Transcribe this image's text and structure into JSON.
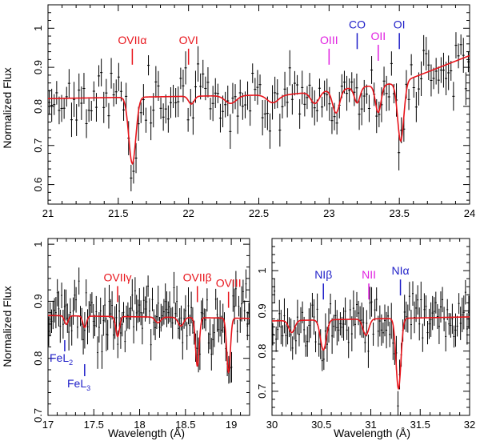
{
  "figure": {
    "ylabel": "Normalized Flux",
    "xlabel": "Wavelength (Å)"
  },
  "chart_data": [
    {
      "type": "line",
      "panel": "top",
      "xlim": [
        21,
        24
      ],
      "ylim": [
        0.55,
        1.06
      ],
      "xticks": [
        21,
        21.5,
        22,
        22.5,
        23,
        23.5,
        24
      ],
      "xtick_labels": [
        "21",
        "21.5",
        "22",
        "22.5",
        "23",
        "23.5",
        "24"
      ],
      "yticks": [
        0.6,
        0.7,
        0.8,
        0.9,
        1
      ],
      "ytick_labels": [
        "0.6",
        "0.7",
        "0.8",
        "0.9",
        "1"
      ],
      "ylabel": "Normalized Flux",
      "xlabel": "",
      "continuum": [
        [
          21.0,
          0.82
        ],
        [
          22.7,
          0.83
        ],
        [
          23.5,
          0.86
        ],
        [
          24.0,
          0.93
        ]
      ],
      "absorption_lines": [
        {
          "center": 21.6,
          "depth": 0.17,
          "width": 0.025
        },
        {
          "center": 22.02,
          "depth": 0.02,
          "width": 0.02
        },
        {
          "center": 22.3,
          "depth": 0.02,
          "width": 0.04
        },
        {
          "center": 22.6,
          "depth": 0.02,
          "width": 0.04
        },
        {
          "center": 22.9,
          "depth": 0.03,
          "width": 0.03
        },
        {
          "center": 23.05,
          "depth": 0.06,
          "width": 0.025
        },
        {
          "center": 23.2,
          "depth": 0.04,
          "width": 0.02
        },
        {
          "center": 23.35,
          "depth": 0.07,
          "width": 0.02
        },
        {
          "center": 23.51,
          "depth": 0.15,
          "width": 0.022
        }
      ],
      "data_points": {
        "x_start": 21.0,
        "x_end": 24.0,
        "n": 170,
        "seed": 11,
        "scatter": 0.035,
        "error": 0.035
      },
      "line_labels": [
        {
          "text": "OVIIα",
          "x": 21.6,
          "color": "#e8141b",
          "label_y": 0.96
        },
        {
          "text": "OVI",
          "x": 22.0,
          "color": "#e8141b",
          "label_y": 0.96
        },
        {
          "text": "OIII",
          "x": 23.0,
          "color": "#e020e0",
          "label_y": 0.96
        },
        {
          "text": "CO",
          "x": 23.2,
          "color": "#1e1ec8",
          "label_y": 1.0
        },
        {
          "text": "OII",
          "x": 23.35,
          "color": "#e020e0",
          "label_y": 0.97
        },
        {
          "text": "OI",
          "x": 23.5,
          "color": "#1e1ec8",
          "label_y": 1.0
        }
      ]
    },
    {
      "type": "line",
      "panel": "bottom-left",
      "xlim": [
        17,
        19.2
      ],
      "ylim": [
        0.7,
        1.01
      ],
      "xticks": [
        17,
        17.5,
        18,
        18.5,
        19
      ],
      "xtick_labels": [
        "17",
        "17.5",
        "18",
        "18.5",
        "19"
      ],
      "yticks": [
        0.7,
        0.8,
        0.9,
        1
      ],
      "ytick_labels": [
        "0.7",
        "0.8",
        "0.9",
        "1"
      ],
      "ylabel": "Normalized Flux",
      "xlabel": "Wavelength (Å)",
      "continuum": [
        [
          17.0,
          0.875
        ],
        [
          19.2,
          0.87
        ]
      ],
      "absorption_lines": [
        {
          "center": 17.2,
          "depth": 0.015,
          "width": 0.02
        },
        {
          "center": 17.4,
          "depth": 0.02,
          "width": 0.02
        },
        {
          "center": 17.76,
          "depth": 0.035,
          "width": 0.02
        },
        {
          "center": 18.2,
          "depth": 0.01,
          "width": 0.03
        },
        {
          "center": 18.45,
          "depth": 0.015,
          "width": 0.03
        },
        {
          "center": 18.63,
          "depth": 0.085,
          "width": 0.02
        },
        {
          "center": 18.97,
          "depth": 0.095,
          "width": 0.02
        }
      ],
      "data_points": {
        "x_start": 17.0,
        "x_end": 19.2,
        "n": 140,
        "seed": 23,
        "scatter": 0.025,
        "error": 0.025
      },
      "line_labels": [
        {
          "text": "OVIIγ",
          "x": 17.76,
          "color": "#e8141b",
          "label_y": 0.935
        },
        {
          "text": "OVIIβ",
          "x": 18.63,
          "color": "#e8141b",
          "label_y": 0.935
        },
        {
          "text": "OVIII",
          "x": 18.97,
          "color": "#e8141b",
          "label_y": 0.925
        }
      ],
      "fe_labels": [
        {
          "text": "FeL",
          "sub": "2",
          "x": 17.2,
          "color": "#1e1ec8"
        },
        {
          "text": "FeL",
          "sub": "3",
          "x": 17.4,
          "color": "#1e1ec8"
        }
      ]
    },
    {
      "type": "line",
      "panel": "bottom-right",
      "xlim": [
        30,
        32
      ],
      "ylim": [
        0.64,
        1.08
      ],
      "xticks": [
        30,
        30.5,
        31,
        31.5,
        32
      ],
      "xtick_labels": [
        "30",
        "30.5",
        "31",
        "31.5",
        "32"
      ],
      "yticks": [
        0.7,
        0.8,
        0.9,
        1
      ],
      "ytick_labels": [
        "0.7",
        "0.8",
        "0.9",
        "1"
      ],
      "ylabel": "",
      "xlabel": "Wavelength (Å)",
      "continuum": [
        [
          30.0,
          0.875
        ],
        [
          32.0,
          0.885
        ]
      ],
      "absorption_lines": [
        {
          "center": 30.2,
          "depth": 0.03,
          "width": 0.03
        },
        {
          "center": 30.52,
          "depth": 0.075,
          "width": 0.03
        },
        {
          "center": 30.95,
          "depth": 0.04,
          "width": 0.03
        },
        {
          "center": 31.28,
          "depth": 0.175,
          "width": 0.025
        }
      ],
      "data_points": {
        "x_start": 30.0,
        "x_end": 32.0,
        "n": 120,
        "seed": 37,
        "scatter": 0.03,
        "error": 0.035
      },
      "line_labels": [
        {
          "text": "NIβ",
          "x": 30.52,
          "color": "#1e1ec8",
          "label_y": 0.98
        },
        {
          "text": "NII",
          "x": 30.98,
          "color": "#e020e0",
          "label_y": 0.98
        },
        {
          "text": "NIα",
          "x": 31.3,
          "color": "#1e1ec8",
          "label_y": 0.99
        }
      ]
    }
  ],
  "colors": {
    "model": "#e8141b",
    "data": "#000000"
  }
}
